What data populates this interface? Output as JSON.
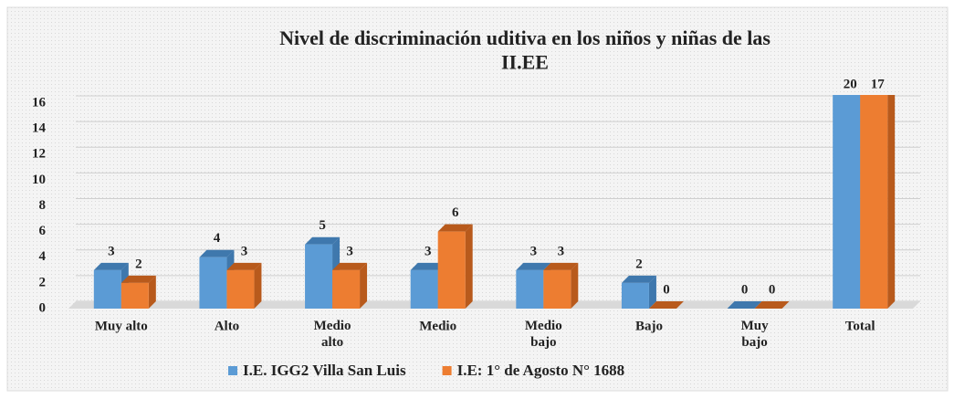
{
  "chart_data": {
    "type": "bar3d",
    "title": "Nivel de discriminación uditiva en los niños y niñas de las\nII.EE",
    "categories": [
      "Muy alto",
      "Alto",
      "Medio\nalto",
      "Medio",
      "Medio\nbajo",
      "Bajo",
      "Muy\nbajo",
      "Total"
    ],
    "series": [
      {
        "name": "I.E. IGG2 Villa San Luis",
        "color": "#5b9bd5",
        "side": "#3f78ad",
        "values": [
          3,
          4,
          5,
          3,
          3,
          2,
          0,
          20
        ]
      },
      {
        "name": "I.E: 1° de Agosto N° 1688",
        "color": "#ed7d31",
        "side": "#b85a1c",
        "values": [
          2,
          3,
          3,
          6,
          3,
          0,
          0,
          17
        ]
      }
    ],
    "ylim": [
      0,
      16
    ],
    "yticks": [
      0,
      2,
      4,
      6,
      8,
      10,
      12,
      14,
      16
    ],
    "grid": true,
    "legend": "bottom"
  }
}
